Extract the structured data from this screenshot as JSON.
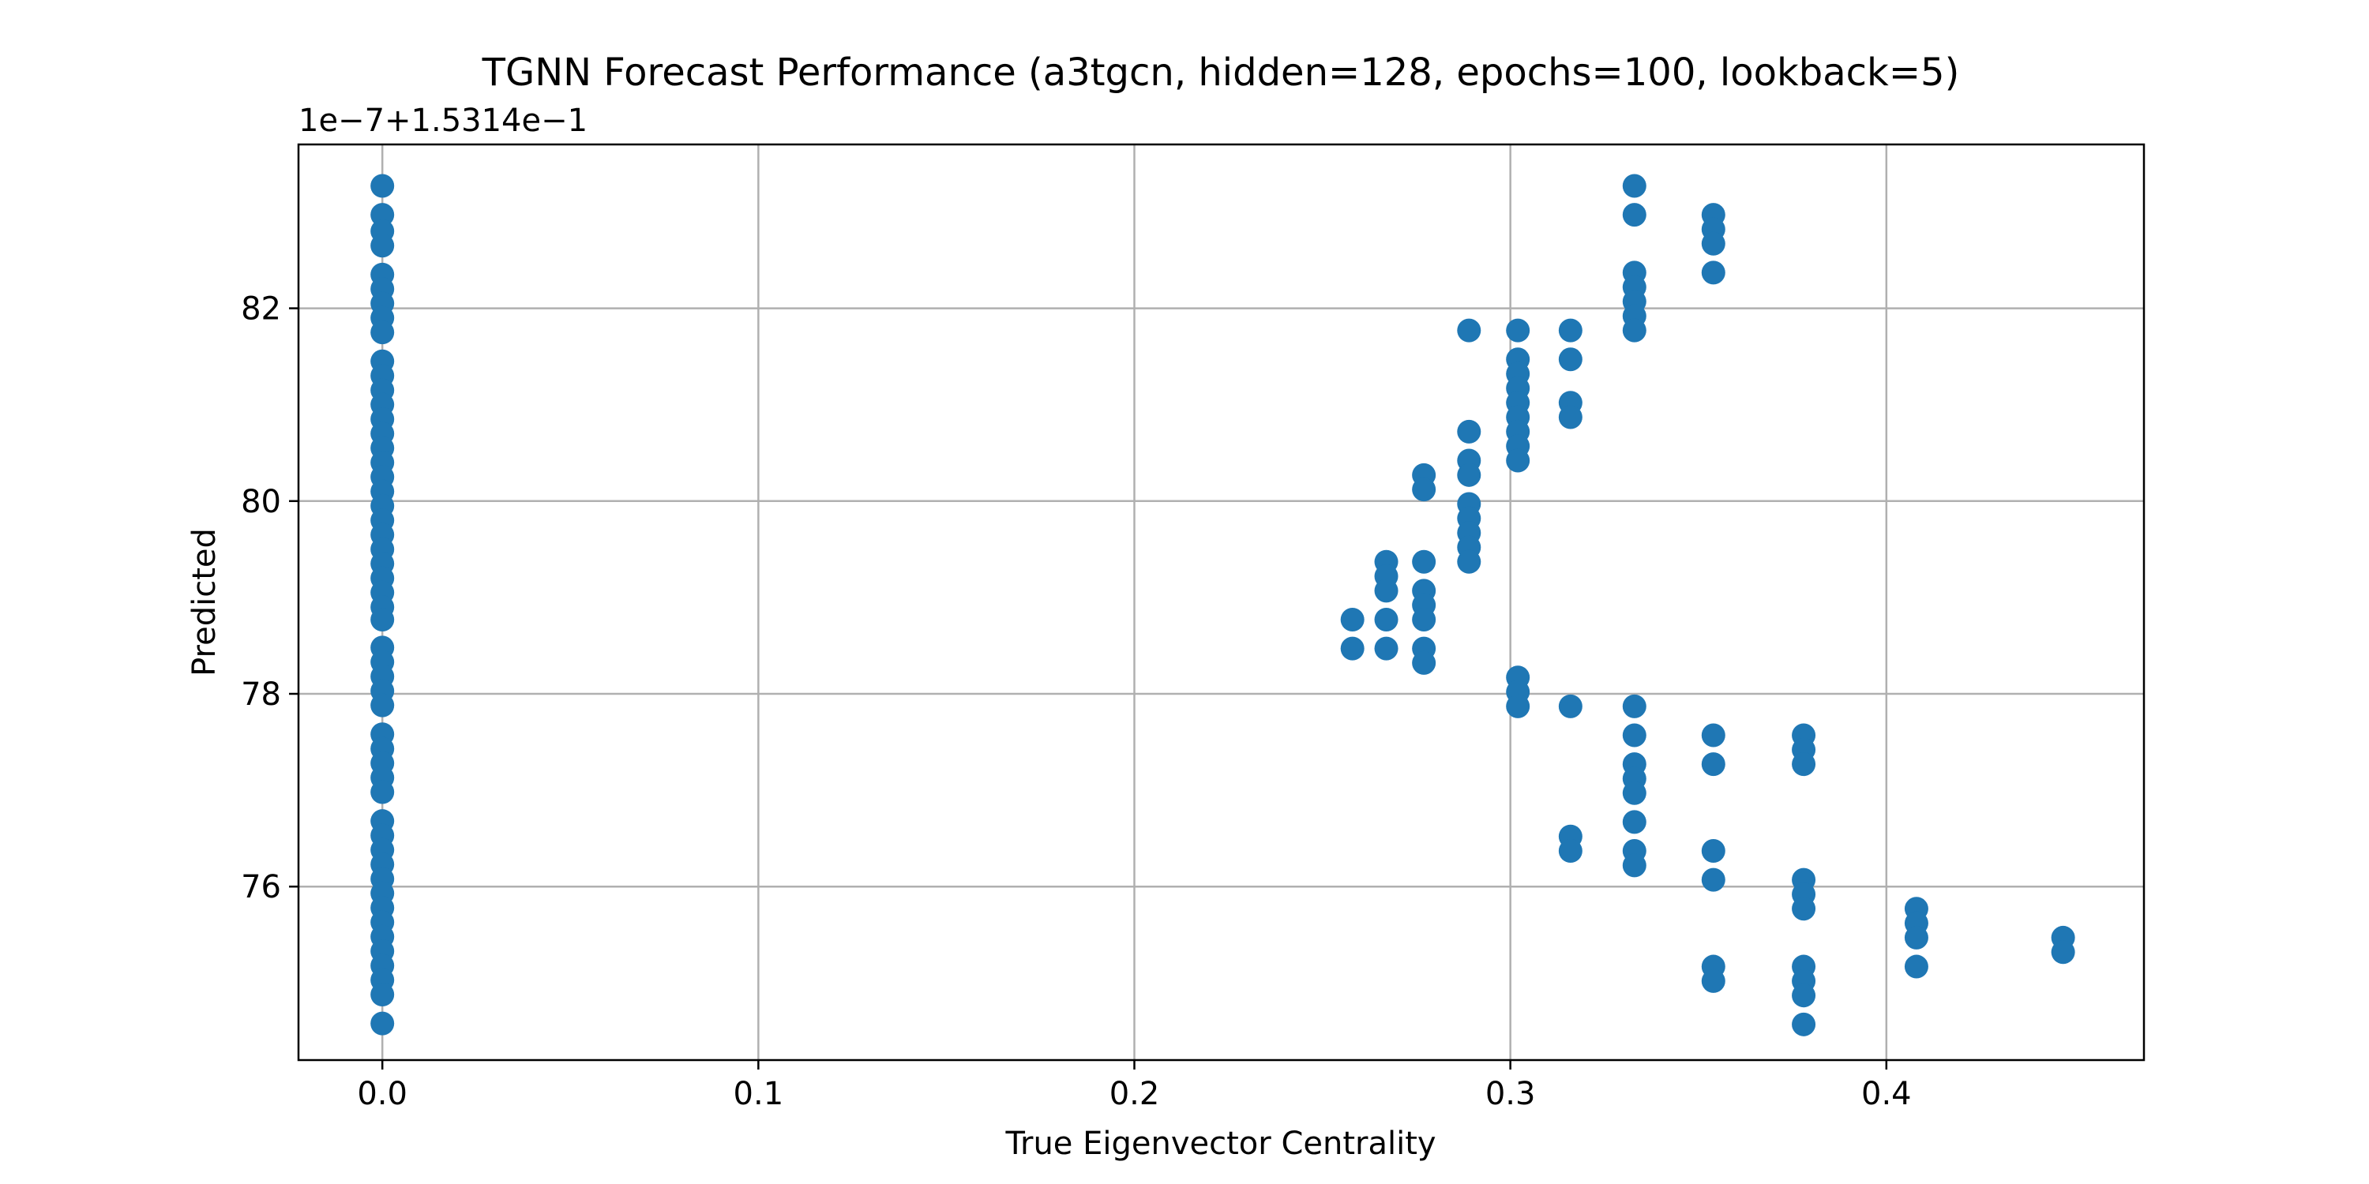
{
  "chart_data": {
    "type": "scatter",
    "title": "TGNN Forecast Performance (a3tgcn, hidden=128, epochs=100, lookback=5)",
    "xlabel": "True Eigenvector Centrality",
    "ylabel": "Predicted",
    "offset_text": "1e−7+1.5314e−1",
    "xlim": [
      -0.0223,
      0.4685
    ],
    "ylim": [
      74.2,
      83.7
    ],
    "grid": true,
    "x_ticks": [
      0.0,
      0.1,
      0.2,
      0.3,
      0.4
    ],
    "x_tick_labels": [
      "0.0",
      "0.1",
      "0.2",
      "0.3",
      "0.4"
    ],
    "y_ticks": [
      76,
      78,
      80,
      82
    ],
    "y_tick_labels": [
      "76",
      "78",
      "80",
      "82"
    ],
    "marker_color": "#1f77b4",
    "series": [
      {
        "points": [
          [
            0.0,
            83.27
          ],
          [
            0.0,
            82.97
          ],
          [
            0.0,
            82.8
          ],
          [
            0.0,
            82.65
          ],
          [
            0.0,
            82.35
          ],
          [
            0.0,
            82.2
          ],
          [
            0.0,
            82.05
          ],
          [
            0.0,
            81.9
          ],
          [
            0.0,
            81.75
          ],
          [
            0.0,
            81.45
          ],
          [
            0.0,
            81.3
          ],
          [
            0.0,
            81.15
          ],
          [
            0.0,
            81.0
          ],
          [
            0.0,
            80.85
          ],
          [
            0.0,
            80.7
          ],
          [
            0.0,
            80.55
          ],
          [
            0.0,
            80.4
          ],
          [
            0.0,
            80.25
          ],
          [
            0.0,
            80.1
          ],
          [
            0.0,
            79.95
          ],
          [
            0.0,
            79.8
          ],
          [
            0.0,
            79.65
          ],
          [
            0.0,
            79.5
          ],
          [
            0.0,
            79.35
          ],
          [
            0.0,
            79.2
          ],
          [
            0.0,
            79.05
          ],
          [
            0.0,
            78.9
          ],
          [
            0.0,
            78.77
          ],
          [
            0.0,
            78.48
          ],
          [
            0.0,
            78.33
          ],
          [
            0.0,
            78.18
          ],
          [
            0.0,
            78.03
          ],
          [
            0.0,
            77.88
          ],
          [
            0.0,
            77.58
          ],
          [
            0.0,
            77.43
          ],
          [
            0.0,
            77.28
          ],
          [
            0.0,
            77.13
          ],
          [
            0.0,
            76.98
          ],
          [
            0.0,
            76.68
          ],
          [
            0.0,
            76.53
          ],
          [
            0.0,
            76.38
          ],
          [
            0.0,
            76.23
          ],
          [
            0.0,
            76.08
          ],
          [
            0.0,
            75.93
          ],
          [
            0.0,
            75.78
          ],
          [
            0.0,
            75.63
          ],
          [
            0.0,
            75.48
          ],
          [
            0.0,
            75.33
          ],
          [
            0.0,
            75.18
          ],
          [
            0.0,
            75.03
          ],
          [
            0.0,
            74.88
          ],
          [
            0.0,
            74.58
          ],
          [
            0.258,
            78.77
          ],
          [
            0.258,
            78.47
          ],
          [
            0.267,
            79.37
          ],
          [
            0.267,
            79.22
          ],
          [
            0.267,
            79.07
          ],
          [
            0.267,
            78.77
          ],
          [
            0.267,
            78.47
          ],
          [
            0.277,
            80.27
          ],
          [
            0.277,
            80.12
          ],
          [
            0.277,
            79.37
          ],
          [
            0.277,
            79.07
          ],
          [
            0.277,
            78.92
          ],
          [
            0.277,
            78.77
          ],
          [
            0.277,
            78.47
          ],
          [
            0.277,
            78.32
          ],
          [
            0.289,
            81.77
          ],
          [
            0.289,
            80.72
          ],
          [
            0.289,
            80.42
          ],
          [
            0.289,
            80.27
          ],
          [
            0.289,
            79.97
          ],
          [
            0.289,
            79.82
          ],
          [
            0.289,
            79.67
          ],
          [
            0.289,
            79.52
          ],
          [
            0.289,
            79.37
          ],
          [
            0.302,
            81.77
          ],
          [
            0.302,
            81.47
          ],
          [
            0.302,
            81.32
          ],
          [
            0.302,
            81.17
          ],
          [
            0.302,
            81.02
          ],
          [
            0.302,
            80.87
          ],
          [
            0.302,
            80.72
          ],
          [
            0.302,
            80.57
          ],
          [
            0.302,
            80.42
          ],
          [
            0.302,
            78.17
          ],
          [
            0.302,
            78.02
          ],
          [
            0.302,
            77.87
          ],
          [
            0.316,
            81.77
          ],
          [
            0.316,
            81.47
          ],
          [
            0.316,
            81.02
          ],
          [
            0.316,
            80.87
          ],
          [
            0.316,
            77.87
          ],
          [
            0.316,
            76.52
          ],
          [
            0.316,
            76.37
          ],
          [
            0.333,
            83.27
          ],
          [
            0.333,
            82.97
          ],
          [
            0.333,
            82.37
          ],
          [
            0.333,
            82.22
          ],
          [
            0.333,
            82.07
          ],
          [
            0.333,
            81.92
          ],
          [
            0.333,
            81.77
          ],
          [
            0.333,
            77.87
          ],
          [
            0.333,
            77.57
          ],
          [
            0.333,
            77.27
          ],
          [
            0.333,
            77.12
          ],
          [
            0.333,
            76.97
          ],
          [
            0.333,
            76.67
          ],
          [
            0.333,
            76.37
          ],
          [
            0.333,
            76.22
          ],
          [
            0.354,
            82.97
          ],
          [
            0.354,
            82.82
          ],
          [
            0.354,
            82.67
          ],
          [
            0.354,
            82.37
          ],
          [
            0.354,
            77.57
          ],
          [
            0.354,
            77.27
          ],
          [
            0.354,
            76.37
          ],
          [
            0.354,
            76.07
          ],
          [
            0.354,
            75.17
          ],
          [
            0.354,
            75.02
          ],
          [
            0.378,
            77.57
          ],
          [
            0.378,
            77.42
          ],
          [
            0.378,
            77.27
          ],
          [
            0.378,
            76.07
          ],
          [
            0.378,
            75.92
          ],
          [
            0.378,
            75.77
          ],
          [
            0.378,
            75.17
          ],
          [
            0.378,
            75.02
          ],
          [
            0.378,
            74.87
          ],
          [
            0.378,
            74.57
          ],
          [
            0.408,
            75.77
          ],
          [
            0.408,
            75.62
          ],
          [
            0.408,
            75.47
          ],
          [
            0.408,
            75.17
          ],
          [
            0.447,
            75.47
          ],
          [
            0.447,
            75.32
          ]
        ]
      }
    ]
  }
}
